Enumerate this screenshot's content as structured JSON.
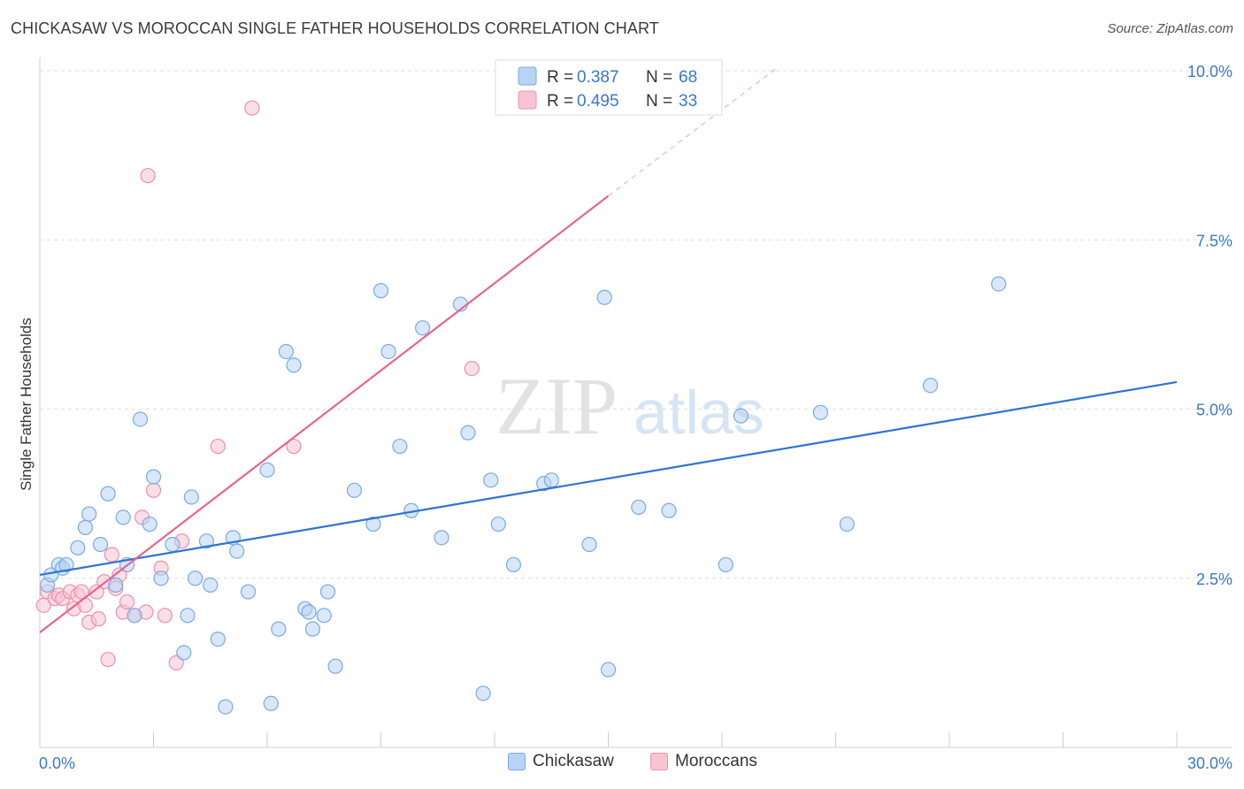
{
  "header": {
    "title": "CHICKASAW VS MOROCCAN SINGLE FATHER HOUSEHOLDS CORRELATION CHART",
    "source": "Source: ZipAtlas.com"
  },
  "colors": {
    "blue_fill": "#b8d4f5",
    "blue_stroke": "#7aaae0",
    "blue_line": "#2f74d0",
    "pink_fill": "#f8c4d4",
    "pink_stroke": "#ee8fae",
    "pink_line": "#e8648c",
    "axis_label": "#3a78c9",
    "grid": "#dddddd"
  },
  "watermark": {
    "zip": "ZIP",
    "atlas": "atlas"
  },
  "legend_top": {
    "rows": [
      {
        "r_label": "R =",
        "r_value": "0.387",
        "n_label": "N =",
        "n_value": "68"
      },
      {
        "r_label": "R =",
        "r_value": "0.495",
        "n_label": "N =",
        "n_value": "33"
      }
    ]
  },
  "legend_bottom": {
    "items": [
      "Chickasaw",
      "Moroccans"
    ]
  },
  "chart_data": {
    "type": "scatter",
    "title": "CHICKASAW VS MOROCCAN SINGLE FATHER HOUSEHOLDS CORRELATION CHART",
    "xlabel": "",
    "ylabel": "Single Father Households",
    "xlim": [
      0,
      30
    ],
    "ylim": [
      0,
      10.2
    ],
    "x_tick_labels": [
      "0.0%",
      "30.0%"
    ],
    "y_ticks": [
      2.5,
      5.0,
      7.5,
      10.0
    ],
    "y_tick_labels": [
      "2.5%",
      "5.0%",
      "7.5%",
      "10.0%"
    ],
    "series": [
      {
        "name": "Chickasaw",
        "r": 0.387,
        "n": 68,
        "trend": {
          "x0": 0,
          "y0": 2.55,
          "x1": 30,
          "y1": 5.4
        },
        "points": [
          [
            0.2,
            2.4
          ],
          [
            0.3,
            2.55
          ],
          [
            0.5,
            2.7
          ],
          [
            0.6,
            2.65
          ],
          [
            0.7,
            2.7
          ],
          [
            1.0,
            2.95
          ],
          [
            1.2,
            3.25
          ],
          [
            1.3,
            3.45
          ],
          [
            1.6,
            3.0
          ],
          [
            1.8,
            3.75
          ],
          [
            2.0,
            2.4
          ],
          [
            2.2,
            3.4
          ],
          [
            2.3,
            2.7
          ],
          [
            2.5,
            1.95
          ],
          [
            2.65,
            4.85
          ],
          [
            2.9,
            3.3
          ],
          [
            3.0,
            4.0
          ],
          [
            3.2,
            2.5
          ],
          [
            3.5,
            3.0
          ],
          [
            3.8,
            1.4
          ],
          [
            3.9,
            1.95
          ],
          [
            4.0,
            3.7
          ],
          [
            4.1,
            2.5
          ],
          [
            4.4,
            3.05
          ],
          [
            4.5,
            2.4
          ],
          [
            4.7,
            1.6
          ],
          [
            4.9,
            0.6
          ],
          [
            5.1,
            3.1
          ],
          [
            5.2,
            2.9
          ],
          [
            5.5,
            2.3
          ],
          [
            6.0,
            4.1
          ],
          [
            6.1,
            0.65
          ],
          [
            6.3,
            1.75
          ],
          [
            6.5,
            5.85
          ],
          [
            6.7,
            5.65
          ],
          [
            7.0,
            2.05
          ],
          [
            7.1,
            2.0
          ],
          [
            7.2,
            1.75
          ],
          [
            7.5,
            1.95
          ],
          [
            7.6,
            2.3
          ],
          [
            7.8,
            1.2
          ],
          [
            8.3,
            3.8
          ],
          [
            8.8,
            3.3
          ],
          [
            9.0,
            6.75
          ],
          [
            9.2,
            5.85
          ],
          [
            9.5,
            4.45
          ],
          [
            9.8,
            3.5
          ],
          [
            10.1,
            6.2
          ],
          [
            10.6,
            3.1
          ],
          [
            11.1,
            6.55
          ],
          [
            11.3,
            4.65
          ],
          [
            11.7,
            0.8
          ],
          [
            11.9,
            3.95
          ],
          [
            12.1,
            3.3
          ],
          [
            12.5,
            2.7
          ],
          [
            13.3,
            3.9
          ],
          [
            13.5,
            3.95
          ],
          [
            14.5,
            3.0
          ],
          [
            14.9,
            6.65
          ],
          [
            15.0,
            1.15
          ],
          [
            15.8,
            3.55
          ],
          [
            16.6,
            3.5
          ],
          [
            18.1,
            2.7
          ],
          [
            18.5,
            4.9
          ],
          [
            20.6,
            4.95
          ],
          [
            21.3,
            3.3
          ],
          [
            23.5,
            5.35
          ],
          [
            25.3,
            6.85
          ]
        ]
      },
      {
        "name": "Moroccans",
        "r": 0.495,
        "n": 33,
        "trend": {
          "x0": 0,
          "y0": 1.7,
          "x1": 15.0,
          "y1": 8.15
        },
        "trend_dashed": {
          "x0": 15.0,
          "y0": 8.15,
          "x1": 19.4,
          "y1": 10.02
        },
        "points": [
          [
            0.1,
            2.1
          ],
          [
            0.2,
            2.3
          ],
          [
            0.4,
            2.2
          ],
          [
            0.5,
            2.25
          ],
          [
            0.6,
            2.2
          ],
          [
            0.8,
            2.3
          ],
          [
            0.9,
            2.05
          ],
          [
            1.0,
            2.25
          ],
          [
            1.1,
            2.3
          ],
          [
            1.2,
            2.1
          ],
          [
            1.3,
            1.85
          ],
          [
            1.5,
            2.3
          ],
          [
            1.55,
            1.9
          ],
          [
            1.7,
            2.45
          ],
          [
            1.8,
            1.3
          ],
          [
            1.9,
            2.85
          ],
          [
            2.0,
            2.35
          ],
          [
            2.1,
            2.55
          ],
          [
            2.2,
            2.0
          ],
          [
            2.3,
            2.15
          ],
          [
            2.5,
            1.95
          ],
          [
            2.7,
            3.4
          ],
          [
            2.8,
            2.0
          ],
          [
            2.85,
            8.45
          ],
          [
            3.0,
            3.8
          ],
          [
            3.2,
            2.65
          ],
          [
            3.3,
            1.95
          ],
          [
            3.6,
            1.25
          ],
          [
            3.75,
            3.05
          ],
          [
            4.7,
            4.45
          ],
          [
            5.6,
            9.45
          ],
          [
            6.7,
            4.45
          ],
          [
            11.4,
            5.6
          ]
        ]
      }
    ]
  }
}
